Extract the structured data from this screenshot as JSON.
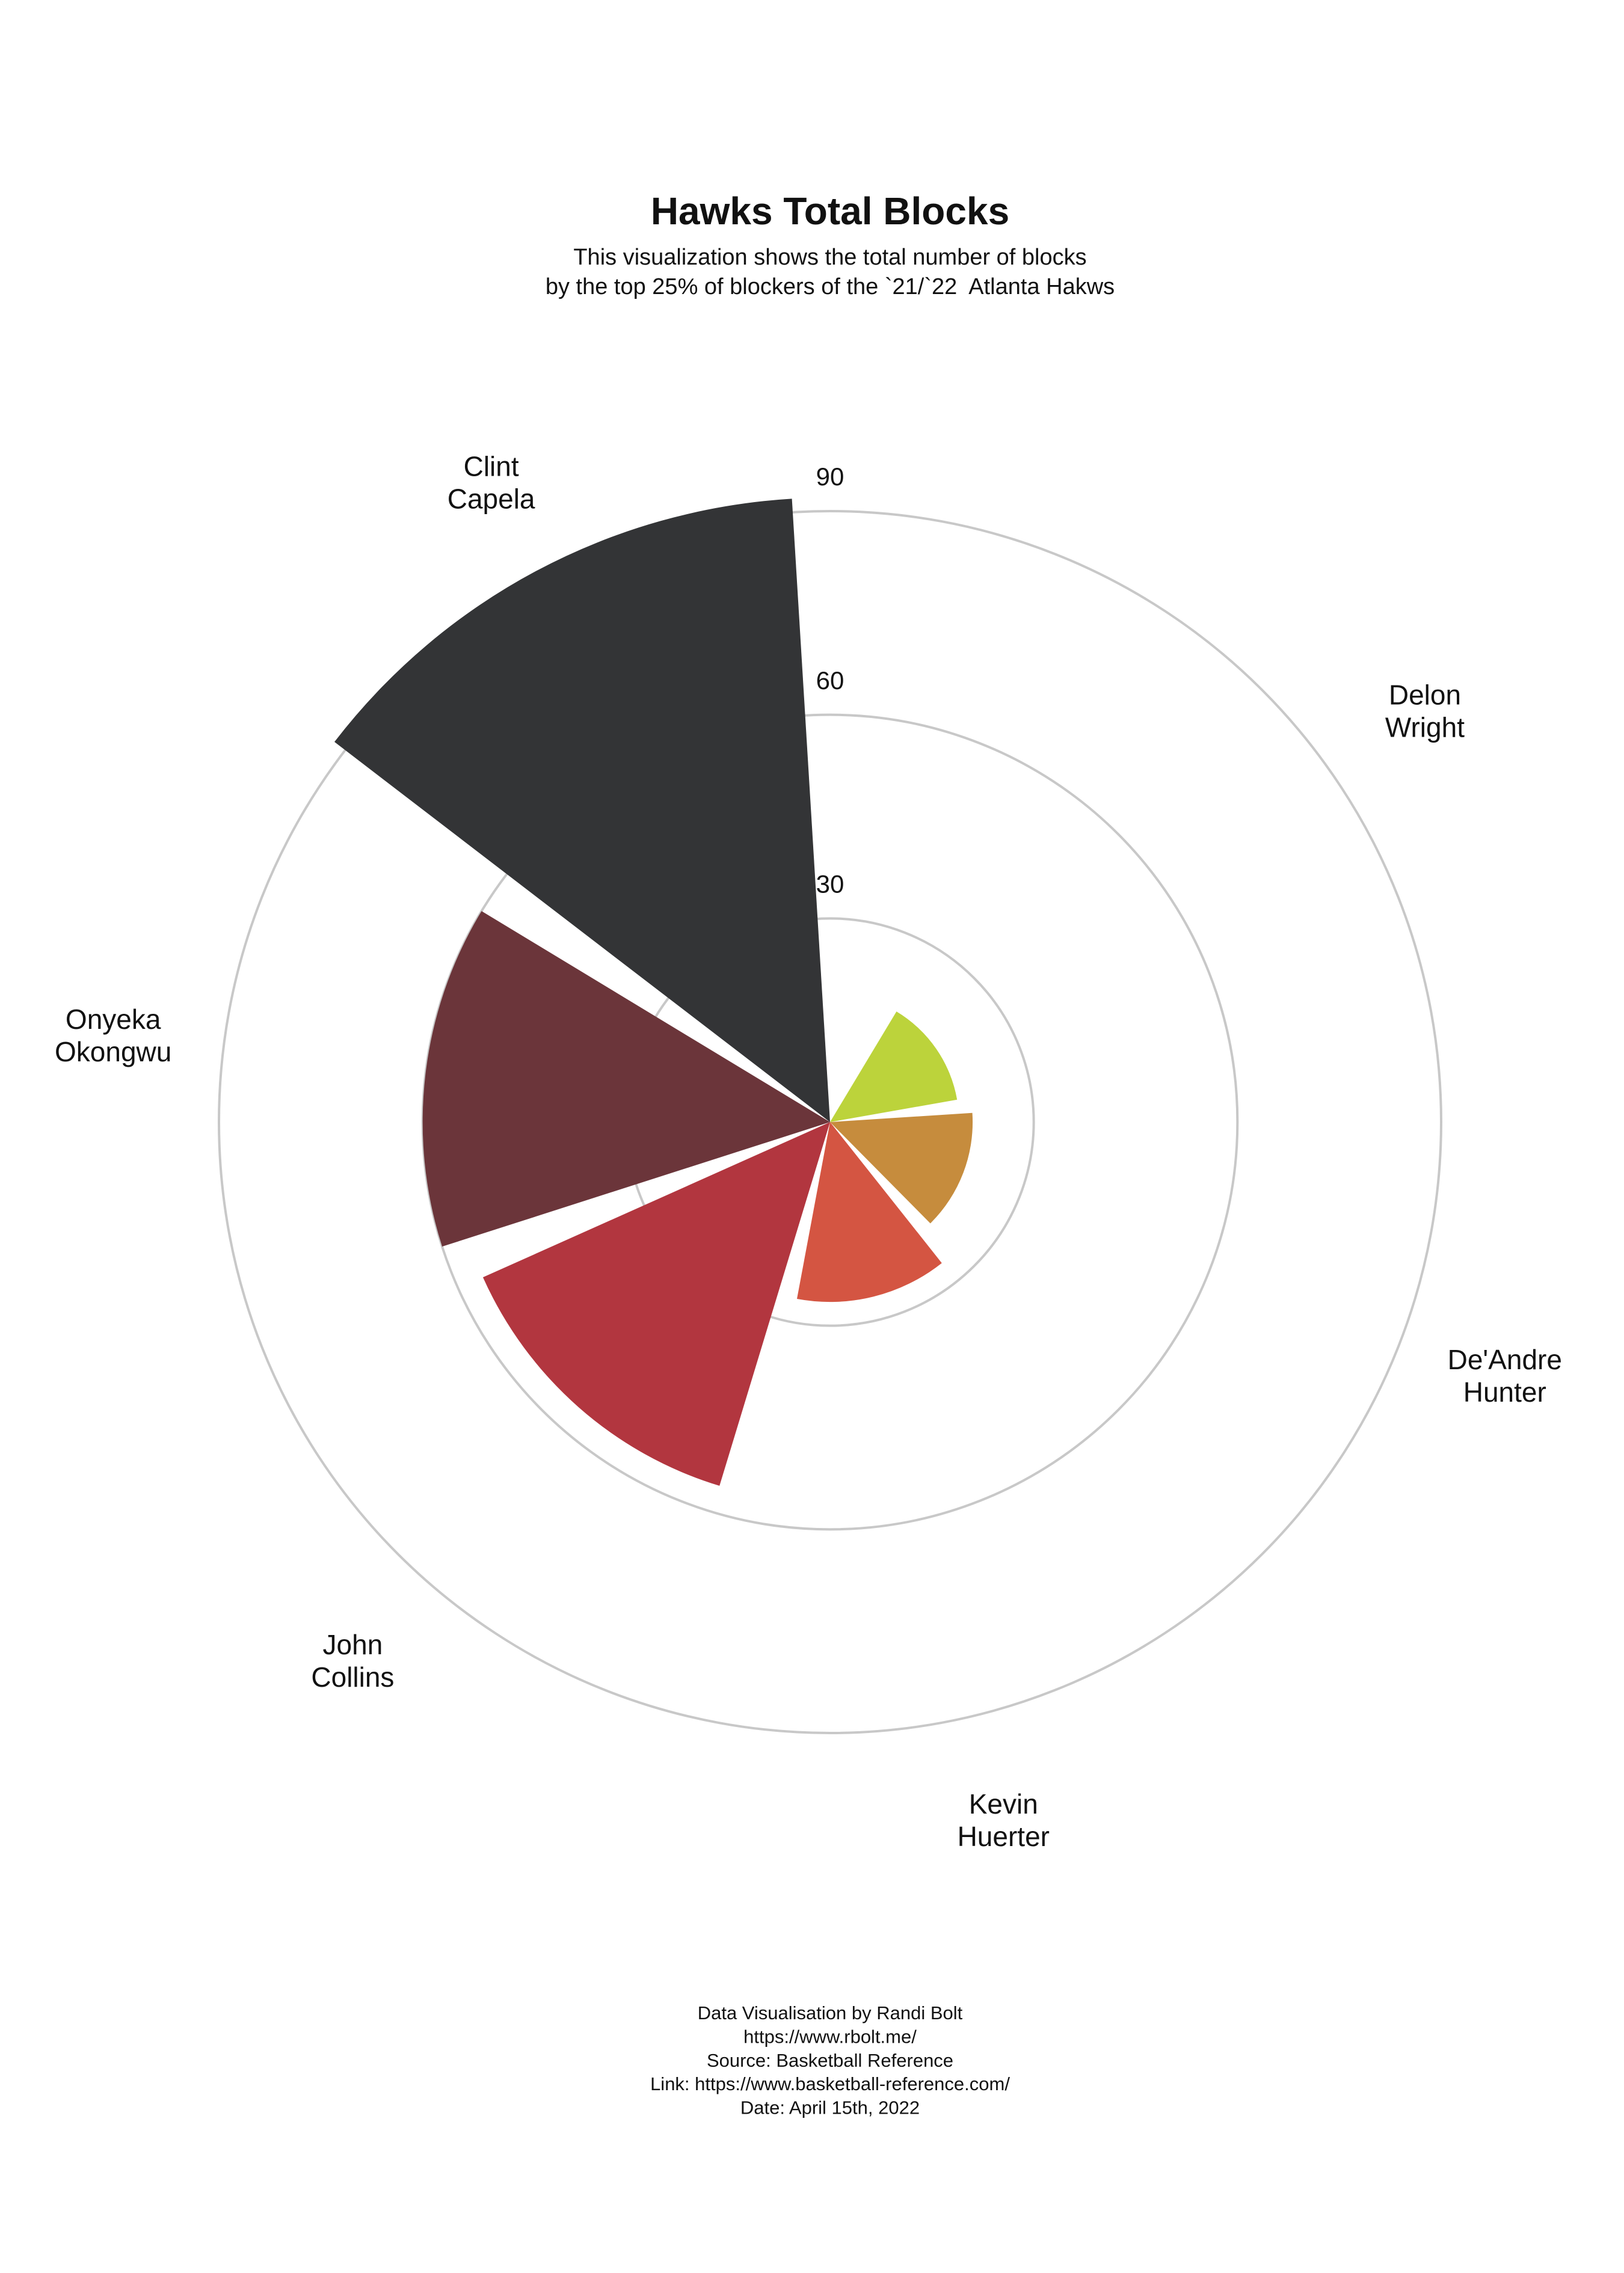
{
  "chart_data": {
    "type": "bar",
    "projection": "polar",
    "title": "Hawks Total Blocks",
    "subtitle": [
      "This visualization shows the total number of blocks",
      "by the top 25% of blockers of the `21/`22  Atlanta Hakws"
    ],
    "categories": [
      "Delon Wright",
      "De'Andre Hunter",
      "Kevin Huerter",
      "John Collins",
      "Onyeka Okongwu",
      "Clint Capela"
    ],
    "values": [
      19,
      21,
      26.5,
      56,
      60,
      92
    ],
    "colors": [
      "#bcd33b",
      "#c68c3d",
      "#d45542",
      "#b2363f",
      "#6b353a",
      "#333436"
    ],
    "ylim": [
      0,
      90
    ],
    "yticks": [
      30,
      60,
      90
    ],
    "grid": true,
    "footer": [
      "Data Visualisation by Randi Bolt",
      "https://www.rbolt.me/",
      "Source: Basketball Reference",
      "Link: https://www.basketball-reference.com/",
      "Date: April 15th, 2022"
    ]
  }
}
